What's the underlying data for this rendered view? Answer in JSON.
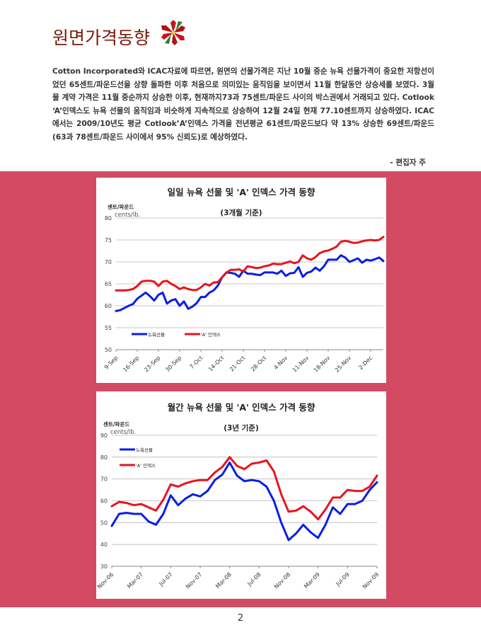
{
  "header": {
    "title": "원면가격동향"
  },
  "article": {
    "paragraph": "Cotton Incorporated와 ICAC자료에 따르면, 원면의 선물가격은 지난 10월 중순 뉴욕 선물가격이 중요한 저항선이었던 65센트/파운드선을 상향 돌파한 이후 처음으로 의미있는 움직임을 보이면서 11월 한달동안 상승세를 보였다. 3월물 계약 가격은 11월 중순까지 상승한 이후, 현재까지73과 75센트/파운드 사이의 박스권에서 거래되고 있다. Cotlook ‘A’인덱스도 뉴욕 선물의 움직임과 비슷하게 지속적으로 상승하여 12월 24일 현재 77.10센트까지 상승하였다. ICAC에서는 2009/10년도 평균 Cotlook’A’인덱스 가격을 전년평균 61센트/파운드보다 약 13% 상승한 69센트/파운드(63과 78센트/파운드 사이에서 95% 신뢰도)로 예상하였다.",
    "signature": "- 편집자 주"
  },
  "page_number": "2",
  "colors": {
    "band": "#d24b63",
    "series_futures": "#0a1ee6",
    "series_index": "#e8141e",
    "title": "#7a1a0c"
  },
  "chart_data": [
    {
      "type": "line",
      "title": "일일 뉴욕 선물 및 'A' 인덱스 가격 동향",
      "subtitle": "(3개월 기준)",
      "ylabel_line1": "센트/파운드",
      "ylabel_line2": "cents/lb.",
      "ylim": [
        50,
        80
      ],
      "yticks": [
        50,
        55,
        60,
        65,
        70,
        75,
        80
      ],
      "x_tick_labels": [
        "9-Sep",
        "16-Sep",
        "23-Sep",
        "30-Sep",
        "7-Oct",
        "14-Oct",
        "21-Oct",
        "28-Oct",
        "4-Nov",
        "11-Nov",
        "18-Nov",
        "25-Nov",
        "2-Dec"
      ],
      "points_per_tick": 5,
      "grid": true,
      "legend": "bottom-left, horizontal",
      "series": [
        {
          "name": "뉴욕선물",
          "color": "#0a1ee6",
          "values": [
            58.8,
            59.0,
            59.5,
            60.0,
            60.4,
            61.6,
            62.3,
            63.0,
            62.2,
            61.2,
            62.5,
            63.0,
            60.5,
            61.2,
            61.5,
            60.0,
            61.0,
            59.3,
            59.8,
            60.6,
            62.0,
            62.0,
            63.0,
            63.5,
            64.6,
            66.5,
            67.6,
            67.5,
            67.3,
            66.6,
            68.0,
            67.3,
            67.3,
            67.1,
            67.0,
            67.6,
            67.6,
            67.6,
            67.3,
            68.0,
            66.8,
            67.4,
            67.5,
            68.8,
            66.6,
            67.5,
            67.8,
            68.7,
            68.0,
            69.0,
            70.5,
            70.5,
            70.5,
            71.5,
            71.0,
            70.0,
            70.4,
            70.8,
            69.8,
            70.5,
            70.3,
            70.6,
            71.0,
            70.2
          ]
        },
        {
          "name": "'A' 인덱스",
          "color": "#e8141e",
          "values": [
            63.5,
            63.5,
            63.5,
            63.6,
            63.8,
            64.5,
            65.5,
            65.7,
            65.7,
            65.5,
            64.5,
            65.5,
            65.7,
            65.0,
            64.5,
            63.8,
            64.2,
            63.8,
            63.6,
            63.6,
            64.2,
            65.0,
            64.6,
            65.3,
            65.4,
            66.5,
            67.5,
            68.2,
            68.2,
            68.3,
            67.8,
            69.0,
            68.8,
            68.6,
            68.7,
            69.0,
            69.2,
            69.6,
            69.5,
            69.5,
            69.8,
            70.1,
            69.7,
            70.0,
            71.5,
            70.8,
            70.5,
            71.1,
            72.0,
            72.4,
            72.6,
            73.0,
            73.5,
            74.6,
            74.8,
            74.6,
            74.3,
            74.4,
            74.7,
            74.9,
            75.0,
            74.9,
            75.0,
            75.7
          ]
        }
      ]
    },
    {
      "type": "line",
      "title": "월간 뉴욕 선물 및 'A' 인덱스 가격 동향",
      "subtitle": "(3년 기준)",
      "ylabel_line1": "센트/파운드",
      "ylabel_line2": "cents/lb.",
      "ylim": [
        30,
        90
      ],
      "yticks": [
        30,
        40,
        50,
        60,
        70,
        80,
        90
      ],
      "x_tick_labels": [
        "Nov-06",
        "Mar-07",
        "Jul-07",
        "Nov-07",
        "Mar-08",
        "Jul-08",
        "Nov-08",
        "Mar-09",
        "Jul-09",
        "Nov-09"
      ],
      "points_per_tick": 4,
      "grid": true,
      "legend": "top-left, vertical",
      "series": [
        {
          "name": "뉴욕선물",
          "color": "#0a1ee6",
          "values": [
            48.5,
            54.0,
            54.5,
            54.0,
            54.0,
            50.5,
            49.0,
            54.0,
            62.5,
            58.0,
            61.0,
            63.0,
            62.0,
            64.5,
            69.5,
            72.0,
            77.5,
            71.5,
            69.0,
            69.5,
            69.0,
            66.5,
            60.0,
            50.0,
            42.0,
            45.0,
            49.0,
            45.5,
            43.0,
            49.0,
            57.0,
            54.0,
            58.5,
            58.5,
            60.0,
            65.0,
            68.5
          ]
        },
        {
          "name": "'A' 인덱스",
          "color": "#e8141e",
          "values": [
            57.5,
            59.5,
            59.0,
            58.0,
            58.5,
            57.0,
            55.5,
            60.5,
            67.5,
            66.5,
            68.0,
            69.0,
            69.5,
            69.5,
            73.0,
            75.5,
            80.0,
            76.0,
            74.5,
            77.0,
            77.5,
            78.5,
            73.5,
            63.0,
            55.0,
            55.5,
            57.5,
            55.0,
            51.5,
            56.0,
            61.5,
            61.5,
            65.0,
            64.5,
            64.5,
            66.5,
            71.5
          ]
        }
      ]
    }
  ]
}
